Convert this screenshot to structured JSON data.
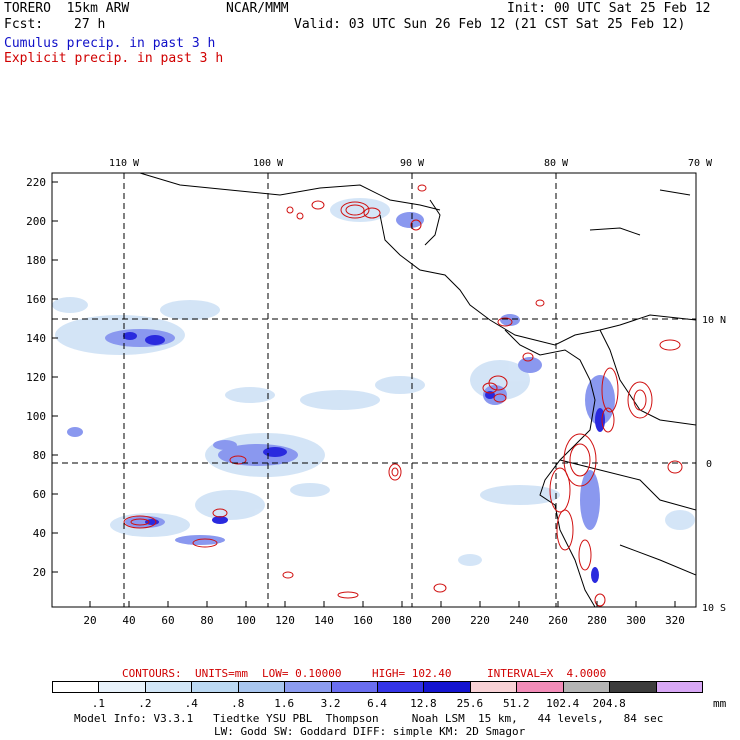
{
  "header": {
    "model": "TORERO  15km ARW",
    "org": "NCAR/MMM",
    "init": "Init: 00 UTC Sat 25 Feb 12",
    "fcst_label": "Fcst:",
    "fcst_value": "27 h",
    "valid": "Valid: 03 UTC Sun 26 Feb 12 (21 CST Sat 25 Feb 12)",
    "line_cumulus": "Cumulus precip. in past 3 h",
    "line_explicit": "Explicit precip. in past 3 h"
  },
  "map": {
    "lon_labels": [
      "110 W",
      "100 W",
      "90 W",
      "80 W",
      "70 W"
    ],
    "lat_labels": [
      "10 N",
      "0",
      "10 S"
    ],
    "y_ticks": [
      "220",
      "200",
      "180",
      "160",
      "140",
      "120",
      "100",
      "80",
      "60",
      "40",
      "20"
    ],
    "x_ticks": [
      "20",
      "40",
      "60",
      "80",
      "100",
      "120",
      "140",
      "160",
      "180",
      "200",
      "220",
      "240",
      "260",
      "280",
      "300",
      "320"
    ]
  },
  "contours_line": {
    "label": "CONTOURS:",
    "units": "UNITS=mm",
    "low": "LOW= 0.10000",
    "high": "HIGH= 102.40",
    "interval": "INTERVAL=X  4.0000"
  },
  "colorbar": {
    "colors": [
      "#ffffff",
      "#e8f2fb",
      "#d2e6f7",
      "#bcd9f3",
      "#a9c6ef",
      "#8c9cf0",
      "#6a6ef0",
      "#3434e6",
      "#1414d0",
      "#f8d2d6",
      "#f28cb8",
      "#b4b4b4",
      "#3c3c3c",
      "#d8a8f5"
    ],
    "labels": [
      ".1",
      ".2",
      ".4",
      ".8",
      "1.6",
      "3.2",
      "6.4",
      "12.8",
      "25.6",
      "51.2",
      "102.4",
      "204.8"
    ],
    "unit": "mm"
  },
  "footer": {
    "line1": "Model Info: V3.3.1   Tiedtke YSU PBL  Thompson     Noah LSM  15 km,   44 levels,   84 sec",
    "line2": "LW: Godd SW: Goddard DIFF: simple KM: 2D Smagor"
  }
}
